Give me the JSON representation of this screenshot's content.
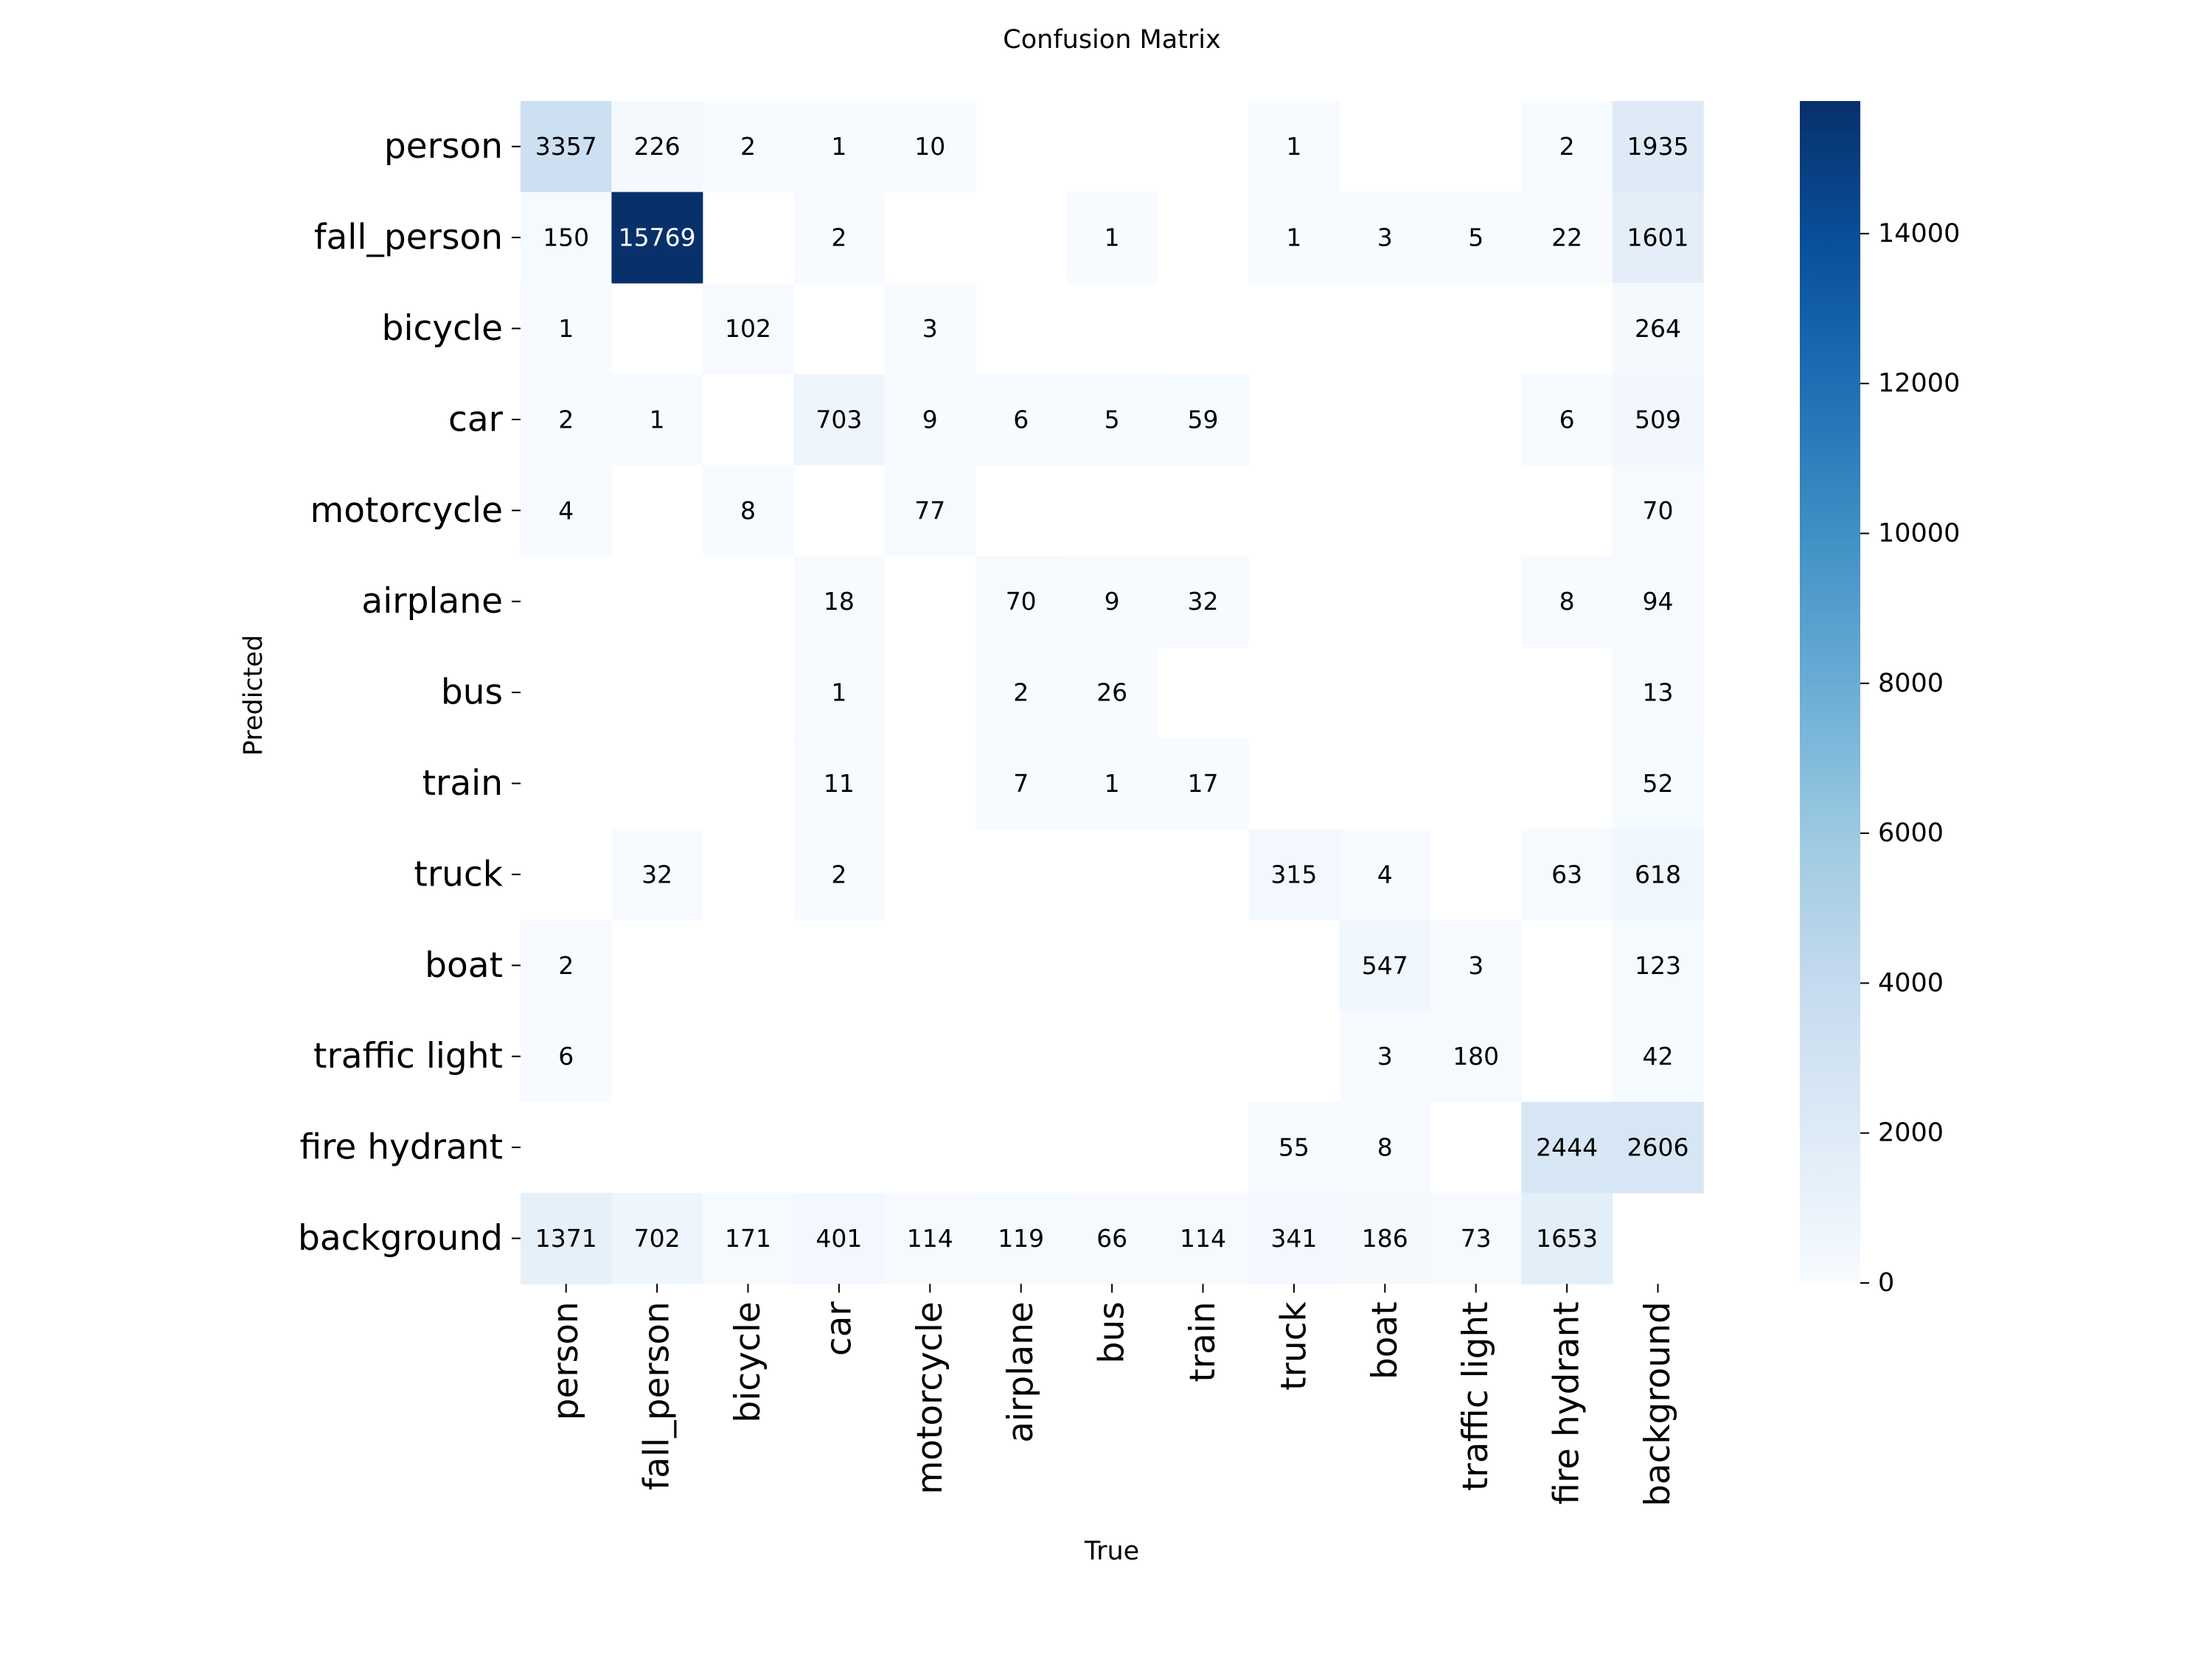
{
  "chart_data": {
    "type": "heatmap",
    "title": "Confusion Matrix",
    "xlabel": "True",
    "ylabel": "Predicted",
    "row_labels": [
      "person",
      "fall_person",
      "bicycle",
      "car",
      "motorcycle",
      "airplane",
      "bus",
      "train",
      "truck",
      "boat",
      "traffic light",
      "fire hydrant",
      "background"
    ],
    "col_labels": [
      "person",
      "fall_person",
      "bicycle",
      "car",
      "motorcycle",
      "airplane",
      "bus",
      "train",
      "truck",
      "boat",
      "traffic light",
      "fire hydrant",
      "background"
    ],
    "values": [
      [
        3357,
        226,
        2,
        1,
        10,
        null,
        null,
        null,
        1,
        null,
        null,
        2,
        1935
      ],
      [
        150,
        15769,
        null,
        2,
        null,
        null,
        1,
        null,
        1,
        3,
        5,
        22,
        1601
      ],
      [
        1,
        null,
        102,
        null,
        3,
        null,
        null,
        null,
        null,
        null,
        null,
        null,
        264
      ],
      [
        2,
        1,
        null,
        703,
        9,
        6,
        5,
        59,
        null,
        null,
        null,
        6,
        509
      ],
      [
        4,
        null,
        8,
        null,
        77,
        null,
        null,
        null,
        null,
        null,
        null,
        null,
        70
      ],
      [
        null,
        null,
        null,
        18,
        null,
        70,
        9,
        32,
        null,
        null,
        null,
        8,
        94
      ],
      [
        null,
        null,
        null,
        1,
        null,
        2,
        26,
        null,
        null,
        null,
        null,
        null,
        13
      ],
      [
        null,
        null,
        null,
        11,
        null,
        7,
        1,
        17,
        null,
        null,
        null,
        null,
        52
      ],
      [
        null,
        32,
        null,
        2,
        null,
        null,
        null,
        null,
        315,
        4,
        null,
        63,
        618
      ],
      [
        2,
        null,
        null,
        null,
        null,
        null,
        null,
        null,
        null,
        547,
        3,
        null,
        123
      ],
      [
        6,
        null,
        null,
        null,
        null,
        null,
        null,
        null,
        null,
        3,
        180,
        null,
        42
      ],
      [
        null,
        null,
        null,
        null,
        null,
        null,
        null,
        null,
        55,
        8,
        null,
        2444,
        2606
      ],
      [
        1371,
        702,
        171,
        401,
        114,
        119,
        66,
        114,
        341,
        186,
        73,
        1653,
        null
      ]
    ],
    "vmin": 0,
    "vmax": 15769,
    "colorbar_ticks": [
      0,
      2000,
      4000,
      6000,
      8000,
      10000,
      12000,
      14000
    ],
    "colormap": "Blues",
    "color_low": "#f7fbff",
    "color_high": "#08306b",
    "label_dark_color": "#000000",
    "label_light_color": "#ffffff"
  }
}
